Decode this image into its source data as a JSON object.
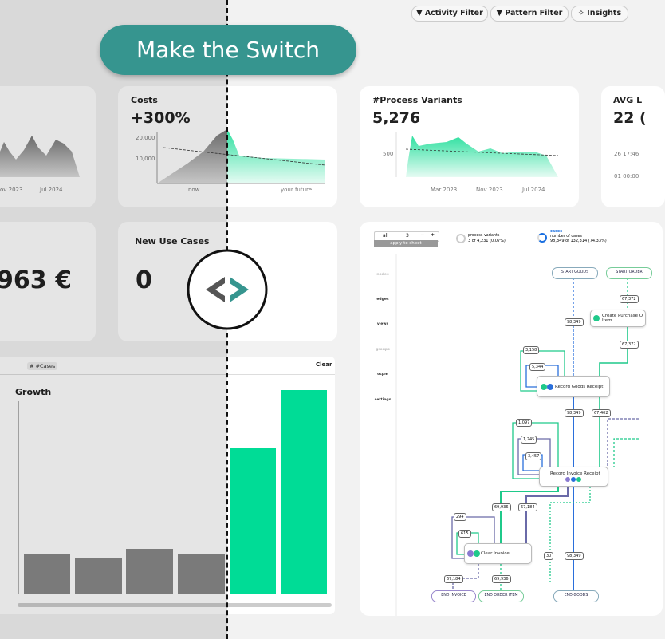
{
  "toolbar": {
    "activity_filter": "Activity Filter",
    "pattern_filter": "Pattern Filter",
    "insights": "Insights"
  },
  "banner": "Make the Switch",
  "cards": {
    "first": {
      "x_labels": [
        "ov 2023",
        "Jul 2024"
      ]
    },
    "costs": {
      "title": "Costs",
      "value": "+300%",
      "y_ticks": [
        "20,000",
        "10,000"
      ],
      "x_labels": [
        "now",
        "your future"
      ]
    },
    "variants": {
      "title": "#Process Variants",
      "value": "5,276",
      "y_ticks": [
        "500"
      ],
      "x_labels": [
        "Mar 2023",
        "Nov 2023",
        "Jul 2024"
      ]
    },
    "avg": {
      "title": "AVG L",
      "value": "22 (",
      "y_ticks": [
        "26 17:46",
        "01 00:00"
      ]
    },
    "savings": {
      "value": "963 €"
    },
    "use_cases": {
      "title": "New Use Cases",
      "value": "0"
    },
    "growth": {
      "column": "# #Cases",
      "clear": "Clear",
      "title": "Growth"
    }
  },
  "process_map": {
    "controls": {
      "all": "all",
      "count": "3",
      "minus": "−",
      "plus": "+",
      "apply": "apply to sheet"
    },
    "variants": {
      "label": "process variants",
      "value": "3 of 4,231 (0.07%)"
    },
    "cases": {
      "title": "cases",
      "label": "number of cases",
      "value": "98,349 of 132,314 (74.33%)"
    },
    "sidebar": [
      "nodes",
      "edges",
      "views",
      "groups",
      "ocpm",
      "settings"
    ],
    "nodes": [
      "START GOODS",
      "START ORDER",
      "Create Purchase O\nItem",
      "Record Goods Receipt",
      "Record Invoice Receipt",
      "Clear Invoice",
      "END INVOICE",
      "END ORDER ITEM",
      "END GOODS"
    ],
    "edge_labels": [
      "67,372",
      "98,349",
      "67,372",
      "3,158",
      "5,344",
      "98,349",
      "67,402",
      "1,097",
      "1,245",
      "3,457",
      "69,936",
      "67,184",
      "294",
      "615",
      "30",
      "98,349",
      "67,184",
      "69,936"
    ]
  }
}
